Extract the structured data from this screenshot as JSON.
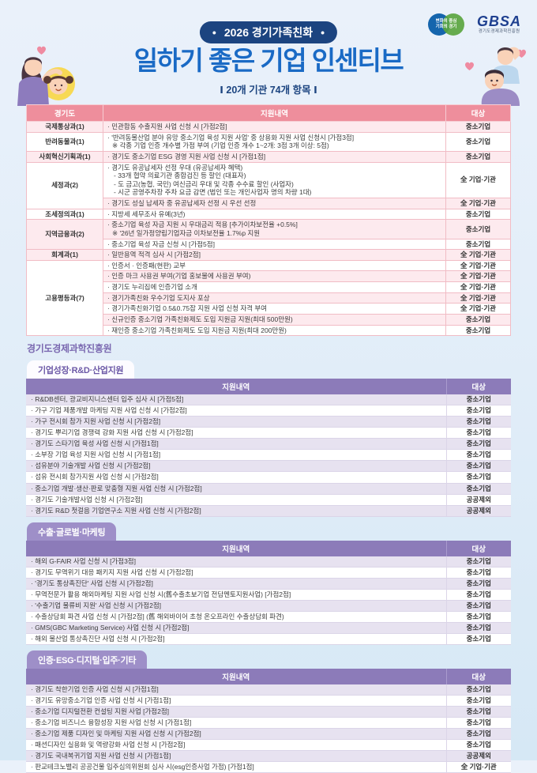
{
  "header": {
    "badge_dot": "•",
    "badge": "2026 경기가족친화",
    "title": "일하기 좋은 기업 인센티브",
    "subtitle": "Ⅰ 20개 기관 74개 항목 Ⅰ"
  },
  "logos": {
    "mark_line1": "변화의 중심",
    "mark_line2": "기회의 경기",
    "gbsa": "GBSA",
    "gbsa_sub": "경기도경제과학진흥원"
  },
  "colors": {
    "pink_header": "#ee8e9c",
    "pink_row": "#fdeaee",
    "purple_header": "#8c7bb9",
    "purple_row": "#e7e2f0",
    "title_blue": "#1a6ac5",
    "navy": "#1c4480",
    "org_purple": "#7a68b0"
  },
  "table_gyeonggi": {
    "headers": [
      "경기도",
      "지원내역",
      "대상"
    ],
    "groups": [
      {
        "dept": "국제통상과(1)",
        "rows": [
          {
            "lines": [
              "· 민관합동 수출지원 사업 신청 시 [가점2점]"
            ],
            "target": "중소기업"
          }
        ]
      },
      {
        "dept": "반려동물과(1)",
        "rows": [
          {
            "lines": [
              "· '반려동물산업 분야 유망 중소기업 육성 지원 사업' 중 상용화 지원 사업 신청시 [가점3점]",
              "※ 각종 기업 인증 개수별 가점 부여 (기업 인증 개수 1~2개: 3점 3개 이상: 5점)"
            ],
            "target": "중소기업"
          }
        ]
      },
      {
        "dept": "사회혁신기획과(1)",
        "rows": [
          {
            "lines": [
              "· 경기도 중소기업 ESG 경영 지원 사업 신청 시 [가점1점]"
            ],
            "target": "중소기업"
          }
        ]
      },
      {
        "dept": "세정과(2)",
        "rows": [
          {
            "lines": [
              "· 경기도 유공납세자 선정 우대 (유공납세자 혜택)",
              "- 33개 협약 의료기관 종합검진 등 할인 (대표자)",
              "- 도 금고(농협, 국민) 여신금리 우대 및 각종 수수료 할인 (사업자)",
              "- 시군 공영주차장 주차 요금 감면 (법인 또는 개인사업자 명의 차량 1대)"
            ],
            "target": "全 기업·기관"
          },
          {
            "lines": [
              "· 경기도 성실 납세자 중 유공납세자 선정 시 우선 선정"
            ],
            "target": "全 기업·기관"
          }
        ]
      },
      {
        "dept": "조세정의과(1)",
        "rows": [
          {
            "lines": [
              "· 지방세 세무조사 유예(3년)"
            ],
            "target": "중소기업"
          }
        ]
      },
      {
        "dept": "지역금융과(2)",
        "rows": [
          {
            "lines": [
              "· 중소기업 육성 자금 지원 시 우대금리 적용 [추가이차보전율 +0.5%]",
              "※ '26년 일가정양립기업자금 이차보전율 1.7%p 지원"
            ],
            "target": "중소기업"
          },
          {
            "lines": [
              "· 중소기업 육성 자금 신청 시 [가점5점]"
            ],
            "target": "중소기업"
          }
        ]
      },
      {
        "dept": "회계과(1)",
        "rows": [
          {
            "lines": [
              "· 일반용역 적격 심사 시 [가점2점]"
            ],
            "target": "全 기업·기관"
          }
        ]
      },
      {
        "dept": "고용평등과(7)",
        "rows": [
          {
            "lines": [
              "· 인증서 · 인증패(현판) 교부"
            ],
            "target": "全 기업·기관"
          },
          {
            "lines": [
              "· 인증 마크 사용권 부여(기업 홍보물에 사용권 부여)"
            ],
            "target": "全 기업·기관"
          },
          {
            "lines": [
              "· 경기도 누리집에 인증기업 소개"
            ],
            "target": "全 기업·기관"
          },
          {
            "lines": [
              "· 경기가족친화 우수기업 도지사 포상"
            ],
            "target": "全 기업·기관"
          },
          {
            "lines": [
              "· 경기가족친화기업 0.5&0.75잡 지원 사업 신청 자격 부여"
            ],
            "target": "全 기업·기관"
          },
          {
            "lines": [
              "· 신규인증 중소기업 가족친화제도 도입 지원금 지원(최대 500만원)"
            ],
            "target": "중소기업"
          },
          {
            "lines": [
              "· 재인증 중소기업 가족친화제도 도입 지원금 지원(최대 200만원)"
            ],
            "target": "중소기업"
          }
        ]
      }
    ]
  },
  "org_title": "경기도경제과학진흥원",
  "section_headers": [
    "지원내역",
    "대상"
  ],
  "sections": [
    {
      "tab": "기업성장·R&D·산업지원",
      "tab_style": "light",
      "rows": [
        {
          "text": "· R&DB센터, 광교비지니스센터 입주 심사 시 [가점5점]",
          "target": "중소기업"
        },
        {
          "text": "· 가구 기업 제품개발 마케팅 지원 사업 신청 시 [가점2점]",
          "target": "중소기업"
        },
        {
          "text": "· 가구 전시회 참가 지원 사업 신청 시 [가점2점]",
          "target": "중소기업"
        },
        {
          "text": "· 경기도 뿌리기업 경쟁력 강화 지원 사업 신청 시 [가점2점]",
          "target": "중소기업"
        },
        {
          "text": "· 경기도 스타기업 육성 사업 신청 시 [가점1점]",
          "target": "중소기업"
        },
        {
          "text": "· 소부장 기업 육성 지원 사업 신청 시 [가점1점]",
          "target": "중소기업"
        },
        {
          "text": "· 섬유분야 기술개발 사업 신청 시 [가점2점]",
          "target": "중소기업"
        },
        {
          "text": "· 섬유 전시회 참가지원 사업 신청 시 [가점2점]",
          "target": "중소기업"
        },
        {
          "text": "· 중소기업 개발·생산·판로 맞춤형 지원 사업 신청 시 [가점2점]",
          "target": "중소기업"
        },
        {
          "text": "· 경기도 기술개발사업 신청 시 [가점2점]",
          "target": "공공제외"
        },
        {
          "text": "· 경기도 R&D 첫걸음 기업연구소 지원 사업 신청 시 [가점2점]",
          "target": "공공제외"
        }
      ]
    },
    {
      "tab": "수출·글로벌·마케팅",
      "tab_style": "solid",
      "rows": [
        {
          "text": "· 해외 G-FAIR 사업 신청 시 [가점3점]",
          "target": "중소기업"
        },
        {
          "text": "· 경기도 무역위기 대응 패키지 지원 사업 신청 시 [가점2점]",
          "target": "중소기업"
        },
        {
          "text": "· '경기도 통상촉진단' 사업 신청 시 [가점2점]",
          "target": "중소기업"
        },
        {
          "text": "· 무역전문가 활용 해외마케팅 지원 사업 신청 시(舊수출초보기업 전담멘토지원사업) [가점2점]",
          "target": "중소기업"
        },
        {
          "text": "· '수출기업 물류비 지원' 사업 신청 시 [가점2점]",
          "target": "중소기업"
        },
        {
          "text": "· 수출상담회 파견 사업 신청 시 [가점2점] (舊 해외바이어 초청 온오프라인 수출상담회 파견)",
          "target": "중소기업"
        },
        {
          "text": "· GMS(GBC Marketing Service) 사업 신청 시 [가점2점]",
          "target": "중소기업"
        },
        {
          "text": "· 해외 물산업 통상촉진단 사업 신청 시 [가점2점]",
          "target": "중소기업"
        }
      ]
    },
    {
      "tab": "인증·ESG·디지털·입주·기타",
      "tab_style": "solid",
      "rows": [
        {
          "text": "· 경기도 착한기업 인증 사업 신청 시 [가점1점]",
          "target": "중소기업"
        },
        {
          "text": "· 경기도 유망중소기업 인증 사업 신청 시 [가점1점]",
          "target": "중소기업"
        },
        {
          "text": "· 중소기업 디지털전환 컨설팅 지원 사업 [가점2점]",
          "target": "중소기업"
        },
        {
          "text": "· 중소기업 비즈니스 융합성장 지원 사업 신청 시 [가점1점]",
          "target": "중소기업"
        },
        {
          "text": "· 중소기업 제품 디자인 및 마케팅 지원 사업 신청 시 [가점2점]",
          "target": "중소기업"
        },
        {
          "text": "· 패션디자인 실용화 및 역량강화 사업 신청 시 [가점2점]",
          "target": "중소기업"
        },
        {
          "text": "· 경기도 국내복귀기업 지원 사업 신청 시 [가점1점]",
          "target": "공공제외"
        },
        {
          "text": "· 판교테크노밸리 공공건물 입주심의위원회 심사 시(esg인증사업 가점) [가점1점]",
          "target": "全 기업·기관"
        }
      ]
    }
  ]
}
